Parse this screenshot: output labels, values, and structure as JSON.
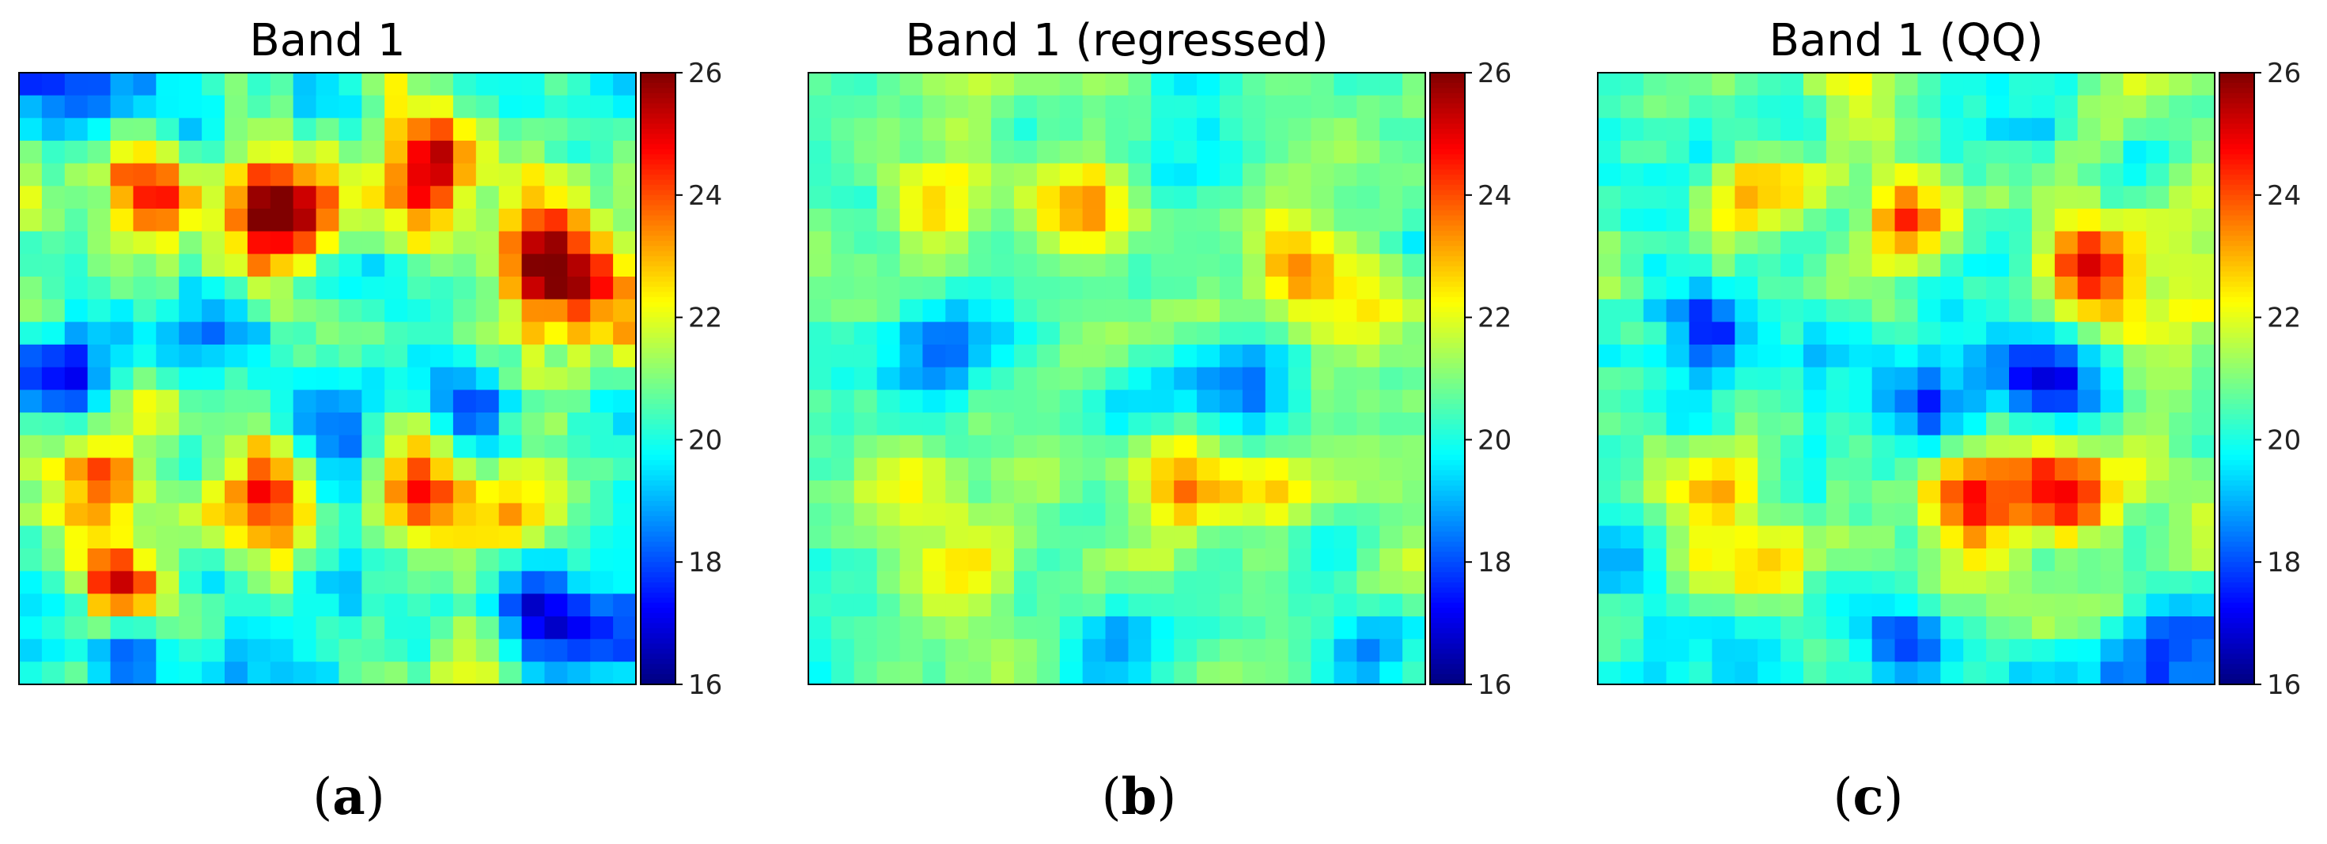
{
  "chart_data": [
    {
      "type": "heatmap",
      "title": "Band 1",
      "panel_label": "a",
      "grid_size": [
        27,
        27
      ],
      "colorbar": {
        "min": 16,
        "max": 26,
        "ticks": [
          16,
          18,
          20,
          22,
          24,
          26
        ],
        "colormap": "jet"
      },
      "base_level": 20.4,
      "noise_amplitude": 1.7,
      "hotspots": [
        {
          "row": 3,
          "col": 17,
          "value": 23.5
        },
        {
          "row": 5,
          "col": 6,
          "value": 24.2
        },
        {
          "row": 5,
          "col": 10,
          "value": 24.6
        },
        {
          "row": 6,
          "col": 12,
          "value": 24.0
        },
        {
          "row": 5,
          "col": 17,
          "value": 23.3
        },
        {
          "row": 8,
          "col": 22,
          "value": 24.3
        },
        {
          "row": 9,
          "col": 25,
          "value": 24.2
        },
        {
          "row": 11,
          "col": 8,
          "value": 17.8
        },
        {
          "row": 13,
          "col": 2,
          "value": 17.9
        },
        {
          "row": 14,
          "col": 19,
          "value": 17.6
        },
        {
          "row": 15,
          "col": 13,
          "value": 17.8
        },
        {
          "row": 17,
          "col": 3,
          "value": 24.5
        },
        {
          "row": 18,
          "col": 10,
          "value": 24.4
        },
        {
          "row": 18,
          "col": 17,
          "value": 24.2
        },
        {
          "row": 19,
          "col": 21,
          "value": 24.4
        },
        {
          "row": 22,
          "col": 4,
          "value": 24.5
        },
        {
          "row": 23,
          "col": 22,
          "value": 17.5
        },
        {
          "row": 25,
          "col": 5,
          "value": 17.8
        },
        {
          "row": 25,
          "col": 26,
          "value": 17.9
        }
      ]
    },
    {
      "type": "heatmap",
      "title": "Band 1 (regressed)",
      "panel_label": "b",
      "grid_size": [
        27,
        27
      ],
      "colorbar": {
        "min": 16,
        "max": 26,
        "ticks": [
          16,
          18,
          20,
          22,
          24,
          26
        ],
        "colormap": "jet"
      },
      "base_level": 20.6,
      "noise_amplitude": 1.0,
      "hotspots": [
        {
          "row": 5,
          "col": 5,
          "value": 22.6
        },
        {
          "row": 6,
          "col": 12,
          "value": 23.8
        },
        {
          "row": 8,
          "col": 21,
          "value": 24.0
        },
        {
          "row": 10,
          "col": 24,
          "value": 22.5
        },
        {
          "row": 11,
          "col": 5,
          "value": 18.6
        },
        {
          "row": 13,
          "col": 19,
          "value": 18.4
        },
        {
          "row": 14,
          "col": 14,
          "value": 18.8
        },
        {
          "row": 18,
          "col": 4,
          "value": 22.6
        },
        {
          "row": 18,
          "col": 16,
          "value": 23.0
        },
        {
          "row": 18,
          "col": 20,
          "value": 23.2
        },
        {
          "row": 21,
          "col": 7,
          "value": 22.5
        },
        {
          "row": 25,
          "col": 13,
          "value": 18.5
        },
        {
          "row": 25,
          "col": 24,
          "value": 18.6
        }
      ]
    },
    {
      "type": "heatmap",
      "title": "Band 1 (QQ)",
      "panel_label": "c",
      "grid_size": [
        27,
        27
      ],
      "colorbar": {
        "min": 16,
        "max": 26,
        "ticks": [
          16,
          18,
          20,
          22,
          24,
          26
        ],
        "colormap": "jet"
      },
      "base_level": 20.5,
      "noise_amplitude": 1.3,
      "hotspots": [
        {
          "row": 5,
          "col": 6,
          "value": 23.4
        },
        {
          "row": 6,
          "col": 13,
          "value": 24.8
        },
        {
          "row": 8,
          "col": 21,
          "value": 25.0
        },
        {
          "row": 10,
          "col": 25,
          "value": 23.0
        },
        {
          "row": 11,
          "col": 4,
          "value": 17.8
        },
        {
          "row": 13,
          "col": 19,
          "value": 17.6
        },
        {
          "row": 14,
          "col": 14,
          "value": 18.2
        },
        {
          "row": 18,
          "col": 4,
          "value": 23.2
        },
        {
          "row": 18,
          "col": 16,
          "value": 24.0
        },
        {
          "row": 18,
          "col": 20,
          "value": 24.5
        },
        {
          "row": 21,
          "col": 7,
          "value": 23.0
        },
        {
          "row": 25,
          "col": 13,
          "value": 17.6
        },
        {
          "row": 25,
          "col": 24,
          "value": 17.8
        }
      ]
    }
  ]
}
